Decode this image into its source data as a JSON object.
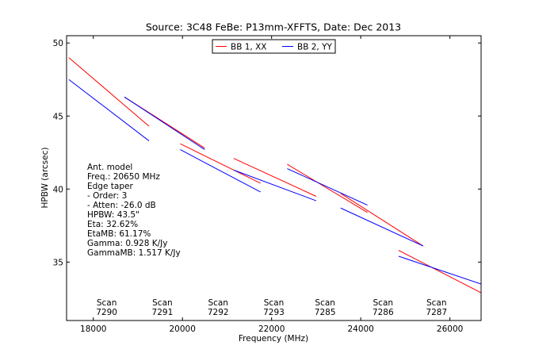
{
  "chart_data": {
    "type": "line",
    "title": "Source: 3C48 FeBe: P13mm-XFFTS, Date: Dec 2013",
    "xlabel": "Frequency (MHz)",
    "ylabel": "HPBW (arcsec)",
    "xlim": [
      17400,
      26700
    ],
    "ylim": [
      31,
      50.5
    ],
    "xticks": [
      18000,
      20000,
      22000,
      24000,
      26000
    ],
    "yticks": [
      35,
      40,
      45,
      50
    ],
    "grid": false,
    "legend_position": "top-center",
    "series": [
      {
        "name": "BB 1, XX",
        "color": "#ff0000",
        "segments": [
          [
            [
              17450,
              49.0
            ],
            [
              19250,
              44.3
            ]
          ],
          [
            [
              18700,
              46.3
            ],
            [
              20500,
              42.8
            ]
          ],
          [
            [
              19950,
              43.1
            ],
            [
              21750,
              40.4
            ]
          ],
          [
            [
              21150,
              42.1
            ],
            [
              23000,
              39.5
            ]
          ],
          [
            [
              22350,
              41.7
            ],
            [
              24150,
              38.4
            ]
          ],
          [
            [
              23550,
              39.7
            ],
            [
              25400,
              36.1
            ]
          ],
          [
            [
              24850,
              35.8
            ],
            [
              26700,
              32.9
            ]
          ]
        ]
      },
      {
        "name": "BB 2, YY",
        "color": "#0000ff",
        "segments": [
          [
            [
              17450,
              47.5
            ],
            [
              19250,
              43.3
            ]
          ],
          [
            [
              18700,
              46.3
            ],
            [
              20500,
              42.7
            ]
          ],
          [
            [
              19950,
              42.7
            ],
            [
              21750,
              39.8
            ]
          ],
          [
            [
              21150,
              41.3
            ],
            [
              23000,
              39.2
            ]
          ],
          [
            [
              22350,
              41.4
            ],
            [
              24150,
              38.9
            ]
          ],
          [
            [
              23550,
              38.7
            ],
            [
              25400,
              36.1
            ]
          ],
          [
            [
              24850,
              35.4
            ],
            [
              26700,
              33.5
            ]
          ]
        ]
      }
    ],
    "scan_labels": [
      {
        "x": 18300,
        "scan": "Scan",
        "num": "7290"
      },
      {
        "x": 19550,
        "scan": "Scan",
        "num": "7291"
      },
      {
        "x": 20800,
        "scan": "Scan",
        "num": "7292"
      },
      {
        "x": 22050,
        "scan": "Scan",
        "num": "7293"
      },
      {
        "x": 23200,
        "scan": "Scan",
        "num": "7285"
      },
      {
        "x": 24500,
        "scan": "Scan",
        "num": "7286"
      },
      {
        "x": 25700,
        "scan": "Scan",
        "num": "7287"
      }
    ],
    "annotation": [
      "Ant. model",
      "Freq.: 20650 MHz",
      "Edge taper",
      " - Order: 3",
      " - Atten: -26.0 dB",
      "HPBW: 43.5\"",
      "Eta: 32.62%",
      "EtaMB: 61.17%",
      "Gamma: 0.928 K/Jy",
      "GammaMB: 1.517 K/Jy"
    ]
  }
}
